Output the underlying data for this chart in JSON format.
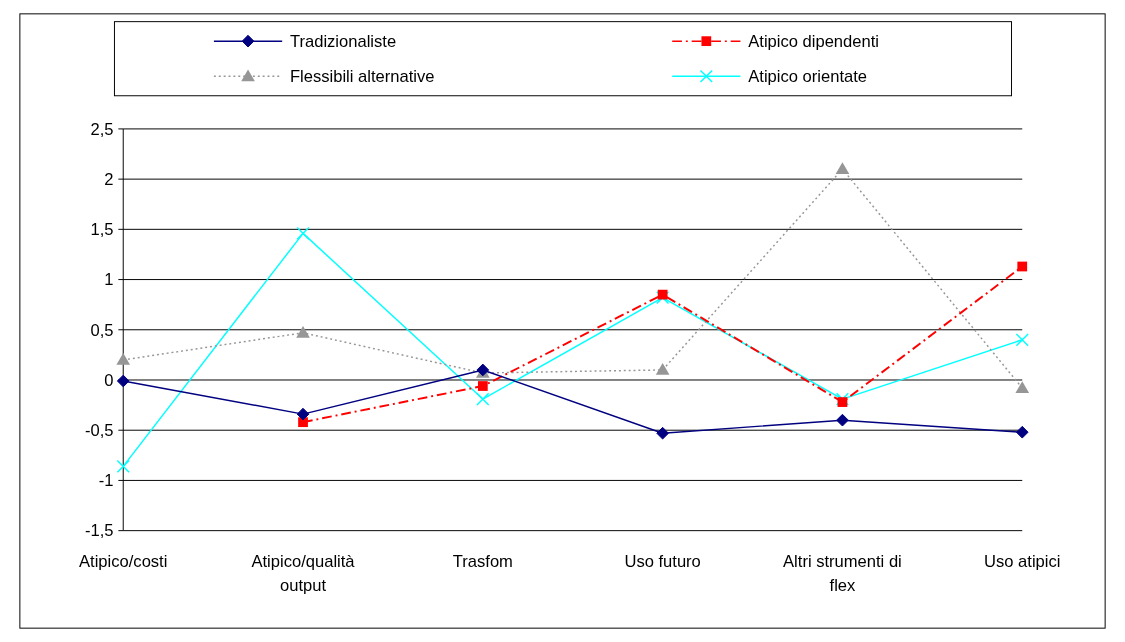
{
  "chart_data": {
    "type": "line",
    "categories": [
      "Atipico/costi",
      "Atipico/qualità output",
      "Trasfom",
      "Uso futuro",
      "Altri strumenti di flex",
      "Uso atipici"
    ],
    "series": [
      {
        "name": "Tradizionaliste",
        "color": "#000080",
        "marker": "diamond",
        "line_style": "solid",
        "values": [
          -0.01,
          -0.34,
          0.1,
          -0.53,
          -0.4,
          -0.52
        ]
      },
      {
        "name": "Atipico dipendenti",
        "color": "#ff0000",
        "marker": "square",
        "line_style": "dashed",
        "values": [
          null,
          -0.42,
          -0.06,
          0.85,
          -0.22,
          1.13
        ]
      },
      {
        "name": "Flessibili alternative",
        "color": "#969696",
        "marker": "triangle",
        "line_style": "dotted",
        "values": [
          0.2,
          0.47,
          0.07,
          0.1,
          2.1,
          -0.08
        ]
      },
      {
        "name": "Atipico orientate",
        "color": "#00ffff",
        "marker": "cross",
        "line_style": "solid",
        "values": [
          -0.86,
          1.46,
          -0.19,
          0.82,
          -0.19,
          0.4
        ]
      }
    ],
    "ylim": [
      -1.5,
      2.5
    ],
    "yticks": [
      {
        "value": -1.5,
        "label": "-1,5"
      },
      -1,
      {
        "value": -0.5,
        "label": "-0,5"
      },
      0,
      {
        "value": 0.5,
        "label": "0,5"
      },
      1,
      {
        "value": 1.5,
        "label": "1,5"
      },
      2,
      {
        "value": 2.5,
        "label": "2,5"
      }
    ],
    "grid": "y",
    "legend": "top"
  }
}
